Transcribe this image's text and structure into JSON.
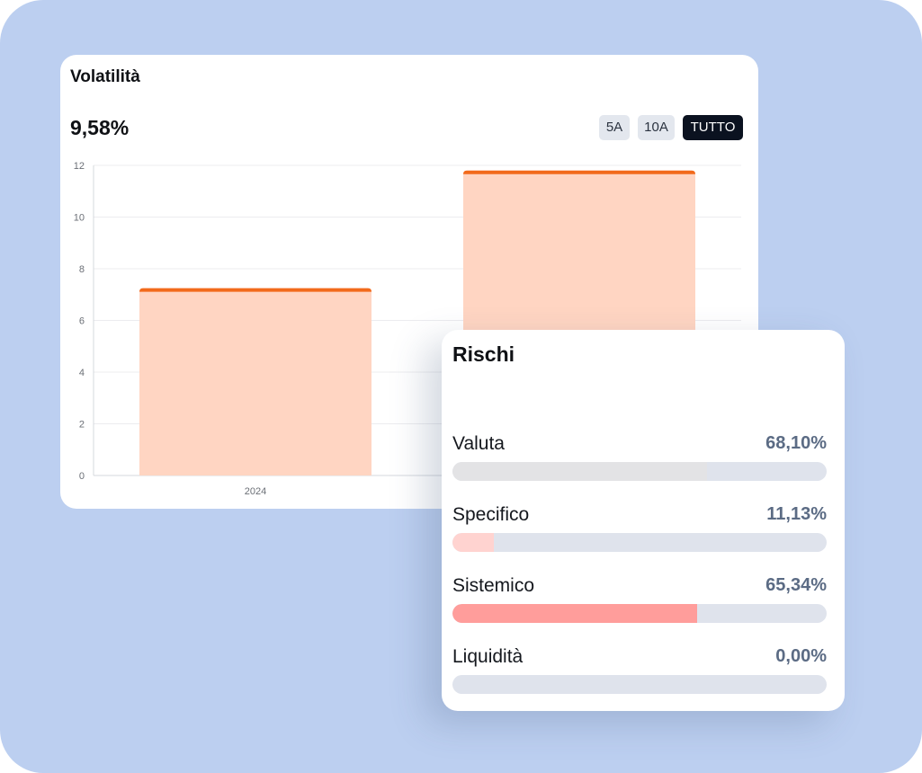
{
  "volatility": {
    "title": "Volatilità",
    "value": "9,58%",
    "periods": [
      {
        "label": "5A",
        "active": false
      },
      {
        "label": "10A",
        "active": false
      },
      {
        "label": "TUTTO",
        "active": true
      }
    ]
  },
  "chart_data": {
    "type": "bar",
    "categories": [
      "2024",
      ""
    ],
    "values": [
      7.25,
      11.8
    ],
    "ylim": [
      0,
      12
    ],
    "yticks": [
      0,
      2,
      4,
      6,
      8,
      10,
      12
    ],
    "bar_color": "#ffd5c2",
    "bar_top_color": "#f26a1b",
    "grid": true
  },
  "risks": {
    "title": "Rischi",
    "items": [
      {
        "label": "Valuta",
        "value": "68,10%",
        "fraction": 0.681,
        "color": "#e3e3e5"
      },
      {
        "label": "Specifico",
        "value": "11,13%",
        "fraction": 0.1113,
        "color": "#ffd3d0"
      },
      {
        "label": "Sistemico",
        "value": "65,34%",
        "fraction": 0.6534,
        "color": "#ff9d9b"
      },
      {
        "label": "Liquidità",
        "value": "0,00%",
        "fraction": 0.0,
        "color": "#ff9d9b"
      }
    ]
  }
}
